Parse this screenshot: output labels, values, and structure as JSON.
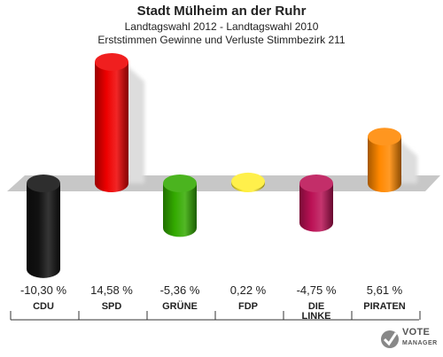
{
  "header": {
    "title": "Stadt Mülheim an der Ruhr",
    "subtitle1": "Landtagswahl 2012 - Landtagswahl 2010",
    "subtitle2": "Erststimmen Gewinne und Verluste Stimmbezirk 211"
  },
  "chart_data": {
    "type": "bar",
    "title": "Stadt Mülheim an der Ruhr",
    "subtitle": "Landtagswahl 2012 - Landtagswahl 2010 / Erststimmen Gewinne und Verluste Stimmbezirk 211",
    "categories": [
      "CDU",
      "SPD",
      "GRÜNE",
      "FDP",
      "DIE LINKE",
      "PIRATEN"
    ],
    "category_lines": [
      [
        "CDU"
      ],
      [
        "SPD"
      ],
      [
        "GRÜNE"
      ],
      [
        "FDP"
      ],
      [
        "DIE",
        "LINKE"
      ],
      [
        "PIRATEN"
      ]
    ],
    "values": [
      -10.3,
      14.58,
      -5.36,
      0.22,
      -4.75,
      5.61
    ],
    "value_labels": [
      "-10,30 %",
      "14,58 %",
      "-5,36 %",
      "0,22 %",
      "-4,75 %",
      "5,61 %"
    ],
    "colors": [
      "#111111",
      "#ee0000",
      "#33aa00",
      "#ffee33",
      "#bb1155",
      "#ff8800"
    ],
    "xlabel": "",
    "ylabel": "",
    "ylim": [
      -10.3,
      14.58
    ],
    "grid": false,
    "legend": "none"
  },
  "logo": {
    "line1": "VOTE",
    "line2": "MANAGER",
    "icon": "checkmark-ballot-icon"
  }
}
